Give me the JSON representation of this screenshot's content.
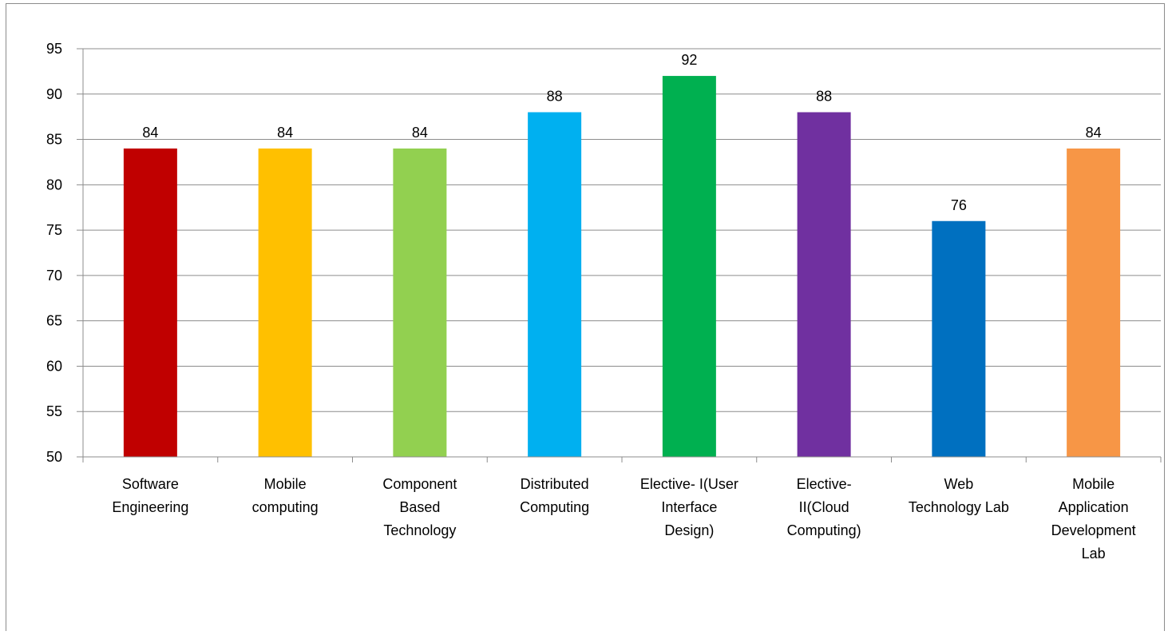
{
  "chart_data": {
    "type": "bar",
    "title": "",
    "xlabel": "",
    "ylabel": "",
    "ylim": [
      50,
      95
    ],
    "yticks": [
      50,
      55,
      60,
      65,
      70,
      75,
      80,
      85,
      90,
      95
    ],
    "grid": true,
    "legend": "none",
    "categories": [
      [
        "Software",
        "Engineering"
      ],
      [
        "Mobile",
        "computing"
      ],
      [
        "Component",
        "Based",
        "Technology"
      ],
      [
        "Distributed",
        "Computing"
      ],
      [
        "Elective- I(User",
        "Interface",
        "Design)"
      ],
      [
        "Elective-",
        "II(Cloud",
        "Computing)"
      ],
      [
        "Web",
        "Technology Lab"
      ],
      [
        "Mobile",
        "Application",
        "Development",
        "Lab"
      ]
    ],
    "values": [
      84,
      84,
      84,
      88,
      92,
      88,
      76,
      84
    ],
    "colors": [
      "#c00000",
      "#ffc000",
      "#92d050",
      "#00b0f0",
      "#00b050",
      "#7030a0",
      "#0070c0",
      "#f79646"
    ]
  }
}
